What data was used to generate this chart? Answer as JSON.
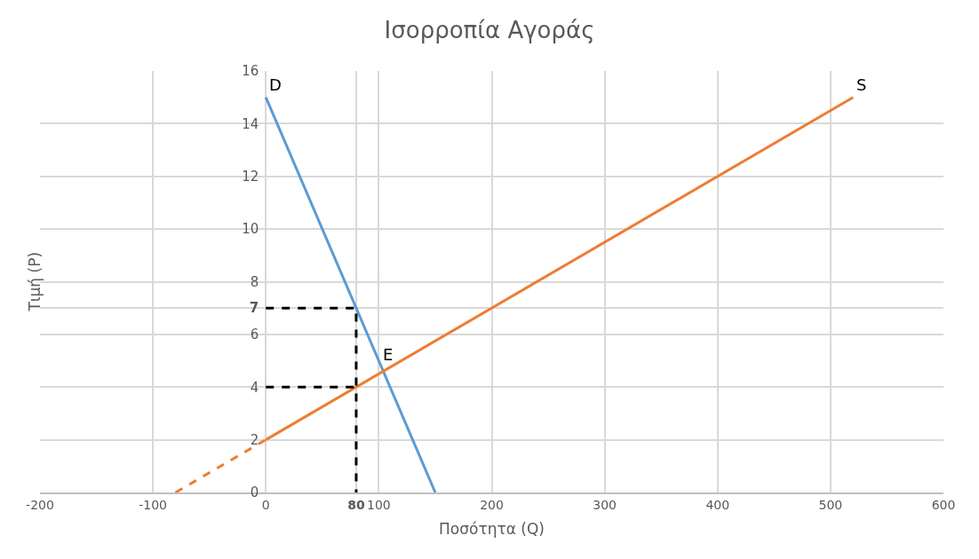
{
  "chart_data": {
    "type": "line",
    "title": "Ισορροπία Αγοράς",
    "xlabel": "Ποσότητα (Q)",
    "ylabel": "Τιμή (P)",
    "series": [
      {
        "name": "D",
        "color": "#5b9bd5",
        "x": [
          0,
          150
        ],
        "values": [
          15,
          0
        ]
      },
      {
        "name": "S",
        "color": "#ed7d31",
        "x": [
          0,
          520
        ],
        "values": [
          2,
          15
        ]
      },
      {
        "color": "#ed7d31",
        "x": [
          -80,
          0
        ],
        "values": [
          0,
          2
        ],
        "line_style": "dashed"
      },
      {
        "color": "#000000",
        "x": [
          0,
          80,
          80
        ],
        "values": [
          7,
          7,
          0
        ],
        "line_style": "dashed"
      },
      {
        "color": "#000000",
        "x": [
          0,
          80
        ],
        "values": [
          4,
          4
        ],
        "line_style": "dashed"
      }
    ],
    "annotations": [
      {
        "text": "E",
        "x": 104,
        "y": 4.6
      }
    ],
    "xlim": [
      -200,
      600
    ],
    "xticks": [
      -200,
      -100,
      0,
      {
        "value": 80,
        "label": "80"
      },
      100,
      200,
      300,
      400,
      500,
      600
    ],
    "ylim": [
      0,
      16
    ],
    "yticks": [
      0,
      2,
      4,
      6,
      {
        "value": 7,
        "label": "7"
      },
      8,
      10,
      12,
      14,
      16
    ],
    "grid": true,
    "marker": "none",
    "line_style": "solid"
  }
}
